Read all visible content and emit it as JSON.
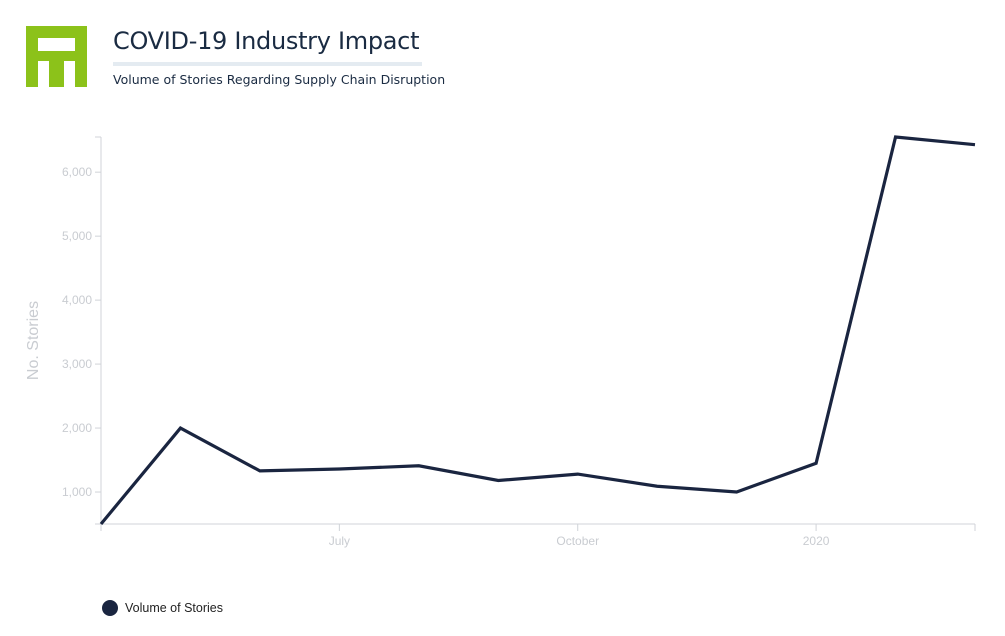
{
  "header": {
    "title": "COVID-19 Industry Impact",
    "subtitle": "Volume of Stories Regarding Supply Chain Disruption"
  },
  "colors": {
    "logo": "#8cc21a",
    "line": "#1a2540",
    "title": "#1a2b42",
    "axis_text": "#c9ccd1",
    "axis_line": "#d0d3d8"
  },
  "chart_data": {
    "type": "line",
    "title": "COVID-19 Industry Impact",
    "subtitle": "Volume of Stories Regarding Supply Chain Disruption",
    "xlabel": "",
    "ylabel": "No. Stories",
    "x": [
      "2019-04",
      "2019-05",
      "2019-06",
      "2019-07",
      "2019-08",
      "2019-09",
      "2019-10",
      "2019-11",
      "2019-12",
      "2020-01",
      "2020-02",
      "2020-03"
    ],
    "x_tick_labels": [
      {
        "x": "2019-07",
        "label": "July"
      },
      {
        "x": "2019-10",
        "label": "October"
      },
      {
        "x": "2020-01",
        "label": "2020"
      }
    ],
    "y_ticks": [
      1000,
      2000,
      3000,
      4000,
      5000,
      6000
    ],
    "y_tick_labels": [
      "1,000",
      "2,000",
      "3,000",
      "4,000",
      "5,000",
      "6,000"
    ],
    "ylim": [
      500,
      6550
    ],
    "series": [
      {
        "name": "Volume of Stories",
        "values": [
          500,
          2000,
          1330,
          1360,
          1410,
          1180,
          1280,
          1090,
          1000,
          1450,
          6550,
          6430
        ]
      }
    ],
    "grid": false,
    "legend": "bottom-left"
  }
}
